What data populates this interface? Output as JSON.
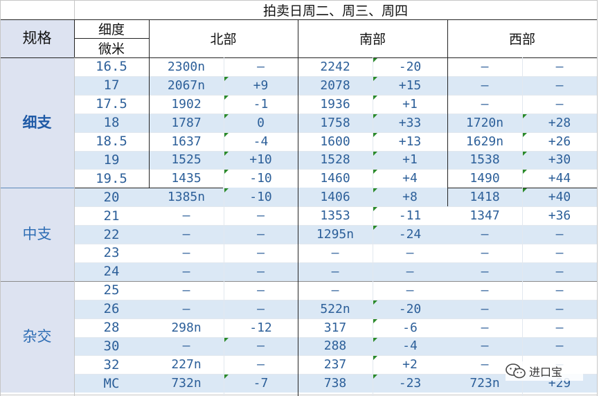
{
  "title": "拍卖日周二、周三、周四",
  "headers": {
    "spec": "规格",
    "micron_top": "细度",
    "micron_bottom": "微米",
    "north": "北部",
    "south": "南部",
    "west": "西部"
  },
  "groups": [
    {
      "label": "细\n支",
      "rows": 7
    },
    {
      "label": "中\n支",
      "rows": 5
    },
    {
      "label": "杂\n交",
      "rows": 6
    }
  ],
  "rows": [
    {
      "size": "16.5",
      "n_price": "2300n",
      "n_chg": "–",
      "s_price": "2242",
      "s_chg": "-20",
      "w_price": "–",
      "w_chg": "–"
    },
    {
      "size": "17",
      "n_price": "2067n",
      "n_chg": "+9",
      "s_price": "2078",
      "s_chg": "+15",
      "w_price": "–",
      "w_chg": "–"
    },
    {
      "size": "17.5",
      "n_price": "1902",
      "n_chg": "-1",
      "s_price": "1936",
      "s_chg": "+1",
      "w_price": "–",
      "w_chg": "–"
    },
    {
      "size": "18",
      "n_price": "1787",
      "n_chg": "0",
      "s_price": "1758",
      "s_chg": "+33",
      "w_price": "1720n",
      "w_chg": "+28"
    },
    {
      "size": "18.5",
      "n_price": "1637",
      "n_chg": "-4",
      "s_price": "1600",
      "s_chg": "+13",
      "w_price": "1629n",
      "w_chg": "+26"
    },
    {
      "size": "19",
      "n_price": "1525",
      "n_chg": "+10",
      "s_price": "1528",
      "s_chg": "+1",
      "w_price": "1538",
      "w_chg": "+30"
    },
    {
      "size": "19.5",
      "n_price": "1435",
      "n_chg": "-10",
      "s_price": "1460",
      "s_chg": "+4",
      "w_price": "1490",
      "w_chg": "+44"
    },
    {
      "size": "20",
      "n_price": "1385n",
      "n_chg": "-10",
      "s_price": "1406",
      "s_chg": "+8",
      "w_price": "1418",
      "w_chg": "+40"
    },
    {
      "size": "21",
      "n_price": "–",
      "n_chg": "–",
      "s_price": "1353",
      "s_chg": "-11",
      "w_price": "1347",
      "w_chg": "+36"
    },
    {
      "size": "22",
      "n_price": "–",
      "n_chg": "–",
      "s_price": "1295n",
      "s_chg": "-24",
      "w_price": "–",
      "w_chg": "–"
    },
    {
      "size": "23",
      "n_price": "–",
      "n_chg": "–",
      "s_price": "–",
      "s_chg": "–",
      "w_price": "–",
      "w_chg": "–"
    },
    {
      "size": "24",
      "n_price": "–",
      "n_chg": "–",
      "s_price": "–",
      "s_chg": "–",
      "w_price": "–",
      "w_chg": "–"
    },
    {
      "size": "25",
      "n_price": "–",
      "n_chg": "–",
      "s_price": "–",
      "s_chg": "–",
      "w_price": "–",
      "w_chg": "–"
    },
    {
      "size": "26",
      "n_price": "–",
      "n_chg": "–",
      "s_price": "522n",
      "s_chg": "-20",
      "w_price": "–",
      "w_chg": "–"
    },
    {
      "size": "28",
      "n_price": "298n",
      "n_chg": "-12",
      "s_price": "317",
      "s_chg": "-6",
      "w_price": "–",
      "w_chg": "–"
    },
    {
      "size": "30",
      "n_price": "–",
      "n_chg": "–",
      "s_price": "288",
      "s_chg": "-4",
      "w_price": "–",
      "w_chg": "–"
    },
    {
      "size": "32",
      "n_price": "227n",
      "n_chg": "–",
      "s_price": "237",
      "s_chg": "+2",
      "w_price": "–",
      "w_chg": "–"
    },
    {
      "size": "MC",
      "n_price": "732n",
      "n_chg": "-7",
      "s_price": "738",
      "s_chg": "-23",
      "w_price": "723n",
      "w_chg": "+29"
    }
  ],
  "watermark": {
    "text": "进口宝",
    "icon": "wechat-icon"
  },
  "colors": {
    "header_blue": "#dde3f1",
    "stripe": "#dbe8f5",
    "value_text": "#2c5f99",
    "comment_marker": "#2a8a2a"
  }
}
